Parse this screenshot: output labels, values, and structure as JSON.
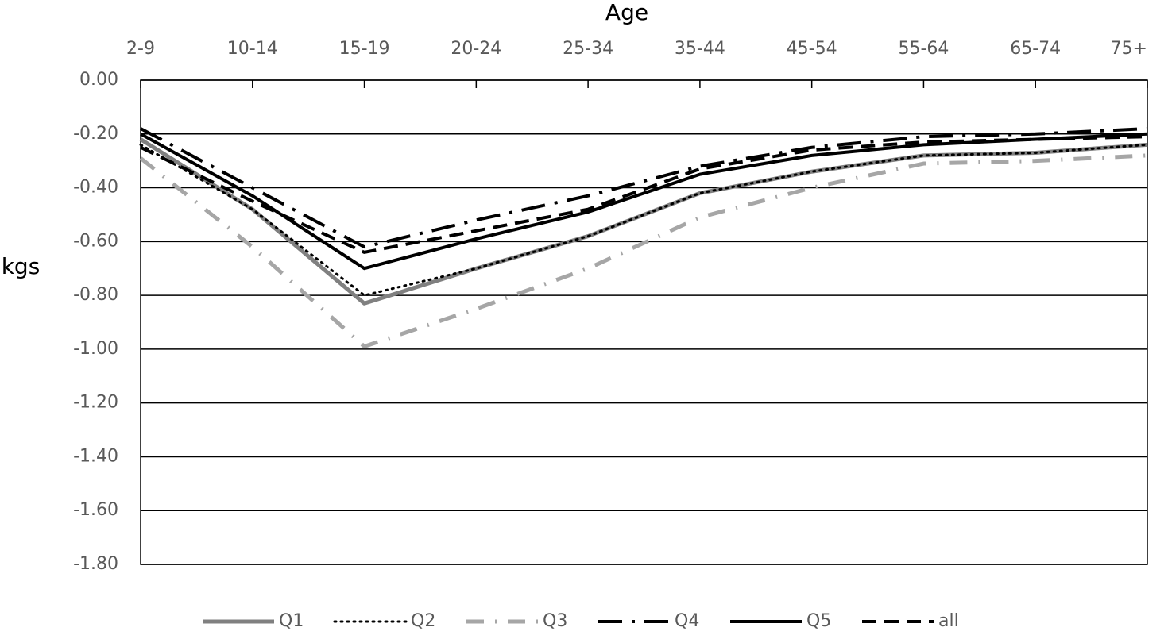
{
  "chart_data": {
    "type": "line",
    "title": "Age",
    "y_label": "kgs",
    "categories": [
      "2-9",
      "10-14",
      "15-19",
      "20-24",
      "25-34",
      "35-44",
      "45-54",
      "55-64",
      "65-74",
      "75+"
    ],
    "ylim": [
      -1.8,
      0
    ],
    "yticks": [
      {
        "value": 0,
        "label": "0.00"
      },
      {
        "value": -0.2,
        "label": "-0.20"
      },
      {
        "value": -0.4,
        "label": "-0.40"
      },
      {
        "value": -0.6,
        "label": "-0.60"
      },
      {
        "value": -0.8,
        "label": "-0.80"
      },
      {
        "value": -1.0,
        "label": "-1.00"
      },
      {
        "value": -1.2,
        "label": "-1.20"
      },
      {
        "value": -1.4,
        "label": "-1.40"
      },
      {
        "value": -1.6,
        "label": "-1.60"
      },
      {
        "value": -1.8,
        "label": "-1.80"
      }
    ],
    "grid": true,
    "legend": "bottom",
    "series": [
      {
        "name": "Q1",
        "color": "#808080",
        "style": "solid-thick",
        "values": [
          -0.22,
          -0.48,
          -0.83,
          -0.7,
          -0.58,
          -0.42,
          -0.34,
          -0.28,
          -0.27,
          -0.24
        ]
      },
      {
        "name": "Q2",
        "color": "#000000",
        "style": "dotted",
        "values": [
          -0.24,
          -0.48,
          -0.8,
          -0.7,
          -0.58,
          -0.42,
          -0.34,
          -0.28,
          -0.27,
          -0.24
        ]
      },
      {
        "name": "Q3",
        "color": "#a6a6a6",
        "style": "dash-dot",
        "values": [
          -0.29,
          -0.62,
          -0.99,
          -0.85,
          -0.7,
          -0.51,
          -0.4,
          -0.31,
          -0.3,
          -0.28
        ]
      },
      {
        "name": "Q4",
        "color": "#000000",
        "style": "long-dash-dot",
        "values": [
          -0.18,
          -0.4,
          -0.62,
          -0.52,
          -0.43,
          -0.32,
          -0.25,
          -0.21,
          -0.2,
          -0.18
        ]
      },
      {
        "name": "Q5",
        "color": "#000000",
        "style": "solid",
        "values": [
          -0.2,
          -0.43,
          -0.7,
          -0.59,
          -0.49,
          -0.35,
          -0.28,
          -0.24,
          -0.22,
          -0.2
        ]
      },
      {
        "name": "all",
        "color": "#000000",
        "style": "dashed",
        "values": [
          -0.25,
          -0.45,
          -0.64,
          -0.56,
          -0.48,
          -0.33,
          -0.26,
          -0.23,
          -0.22,
          -0.21
        ]
      }
    ]
  }
}
